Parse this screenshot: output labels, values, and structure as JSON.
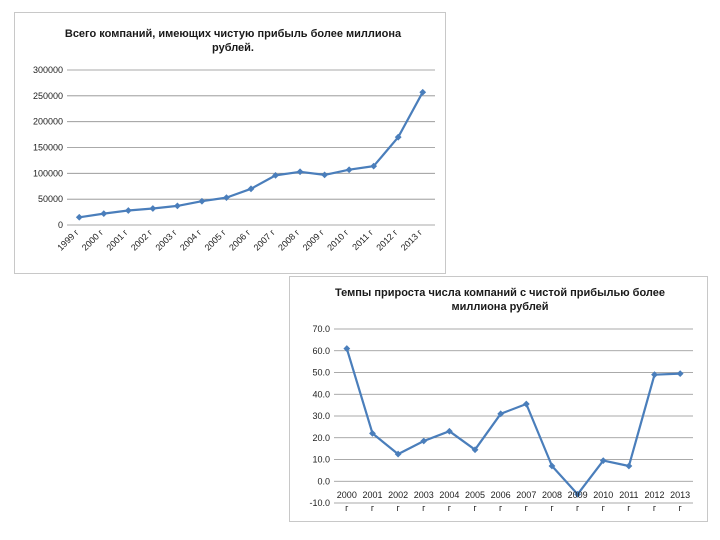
{
  "colors": {
    "series": "#4a7ebb",
    "grid": "#8e8e8e",
    "text": "#222222"
  },
  "chart_data": [
    {
      "type": "line",
      "title_lines": [
        "Всего компаний, имеющих чистую прибыль более миллиона",
        "рублей."
      ],
      "categories": [
        "1999 г",
        "2000 г",
        "2001 г",
        "2002 г",
        "2003 г",
        "2004 г",
        "2005 г",
        "2006 г",
        "2007 г",
        "2008 г",
        "2009 г",
        "2010 г",
        "2011 г",
        "2012 г",
        "2013 г"
      ],
      "values": [
        15000,
        22000,
        28000,
        32000,
        37000,
        46000,
        53000,
        70000,
        96000,
        103000,
        97000,
        107000,
        114000,
        170000,
        257000
      ],
      "ylim": [
        0,
        300000
      ],
      "yticks": [
        0,
        50000,
        100000,
        150000,
        200000,
        250000,
        300000
      ],
      "ytick_labels": [
        "0",
        "50000",
        "100000",
        "150000",
        "200000",
        "250000",
        "300000"
      ],
      "grid": true,
      "legend": "none"
    },
    {
      "type": "line",
      "title_lines": [
        "Темпы прироста числа компаний с чистой прибылью более",
        "миллиона рублей"
      ],
      "categories": [
        "2000",
        "2001",
        "2002",
        "2003",
        "2004",
        "2005",
        "2006",
        "2007",
        "2008",
        "2009",
        "2010",
        "2011",
        "2012",
        "2013"
      ],
      "category_suffix": "г",
      "values": [
        61.0,
        22.0,
        12.5,
        18.5,
        23.0,
        14.5,
        31.0,
        35.5,
        7.0,
        -6.0,
        9.5,
        7.0,
        49.0,
        49.5
      ],
      "ylim": [
        -10,
        70
      ],
      "yticks": [
        -10,
        0,
        10,
        20,
        30,
        40,
        50,
        60,
        70
      ],
      "ytick_labels": [
        "-10.0",
        "0.0",
        "10.0",
        "20.0",
        "30.0",
        "40.0",
        "50.0",
        "60.0",
        "70.0"
      ],
      "grid": true,
      "legend": "none"
    }
  ]
}
